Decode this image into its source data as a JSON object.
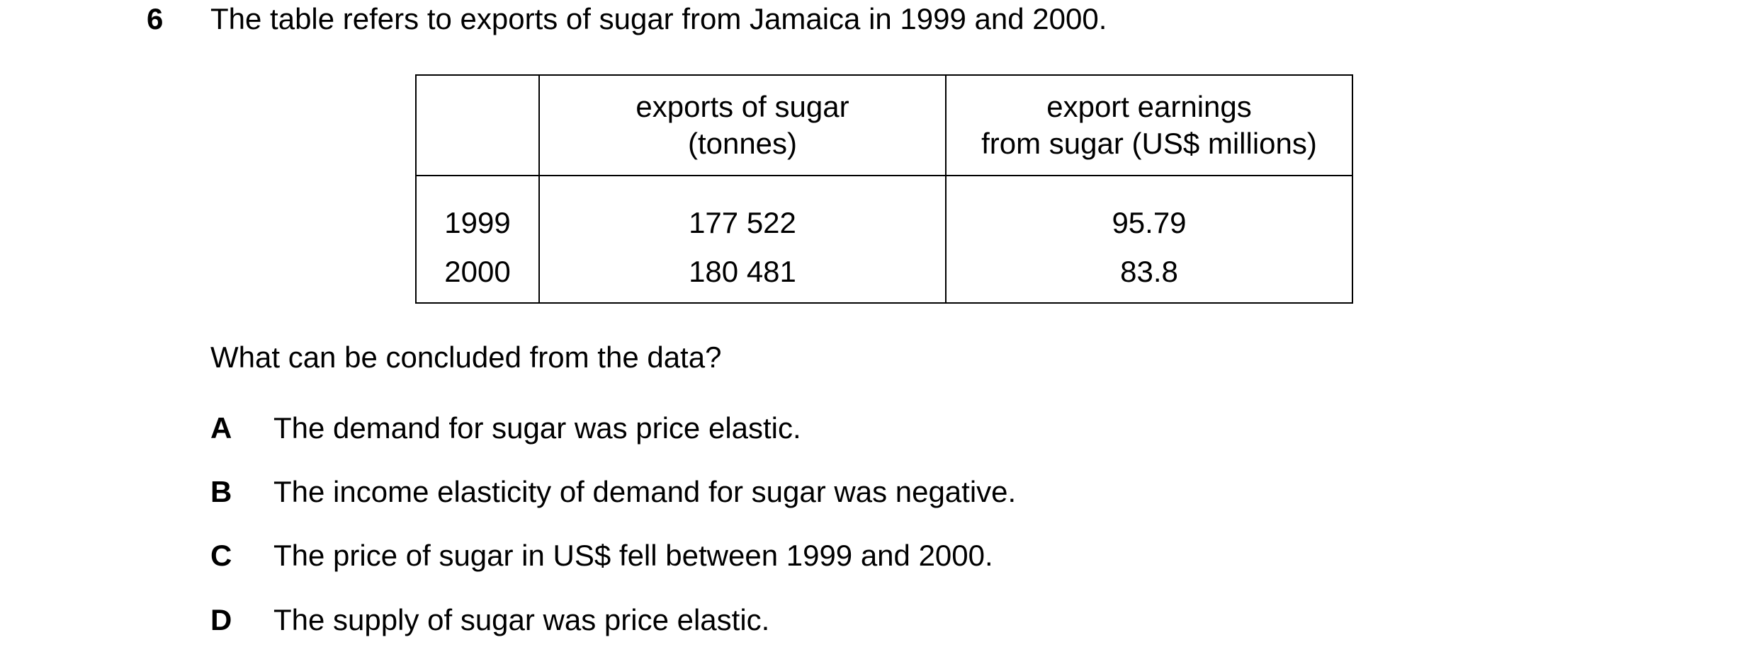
{
  "question": {
    "number": "6",
    "stem": "The table refers to exports of sugar from Jamaica in 1999 and 2000.",
    "prompt": "What can be concluded from the data?"
  },
  "table": {
    "headers": [
      "",
      "exports of sugar",
      "(tonnes)",
      "export earnings",
      "from sugar (US$ millions)"
    ],
    "col1_header_line1": "exports of sugar",
    "col1_header_line2": "(tonnes)",
    "col2_header_line1": "export earnings",
    "col2_header_line2": "from sugar (US$ millions)",
    "rows": [
      {
        "year": "1999",
        "exports": "177 522",
        "earnings": "95.79"
      },
      {
        "year": "2000",
        "exports": "180 481",
        "earnings": "83.8"
      }
    ]
  },
  "options": [
    {
      "letter": "A",
      "text": "The demand for sugar was price elastic."
    },
    {
      "letter": "B",
      "text": "The income elasticity of demand for sugar was negative."
    },
    {
      "letter": "C",
      "text": "The price of sugar in US$ fell between 1999 and 2000."
    },
    {
      "letter": "D",
      "text": "The supply of sugar was price elastic."
    }
  ]
}
